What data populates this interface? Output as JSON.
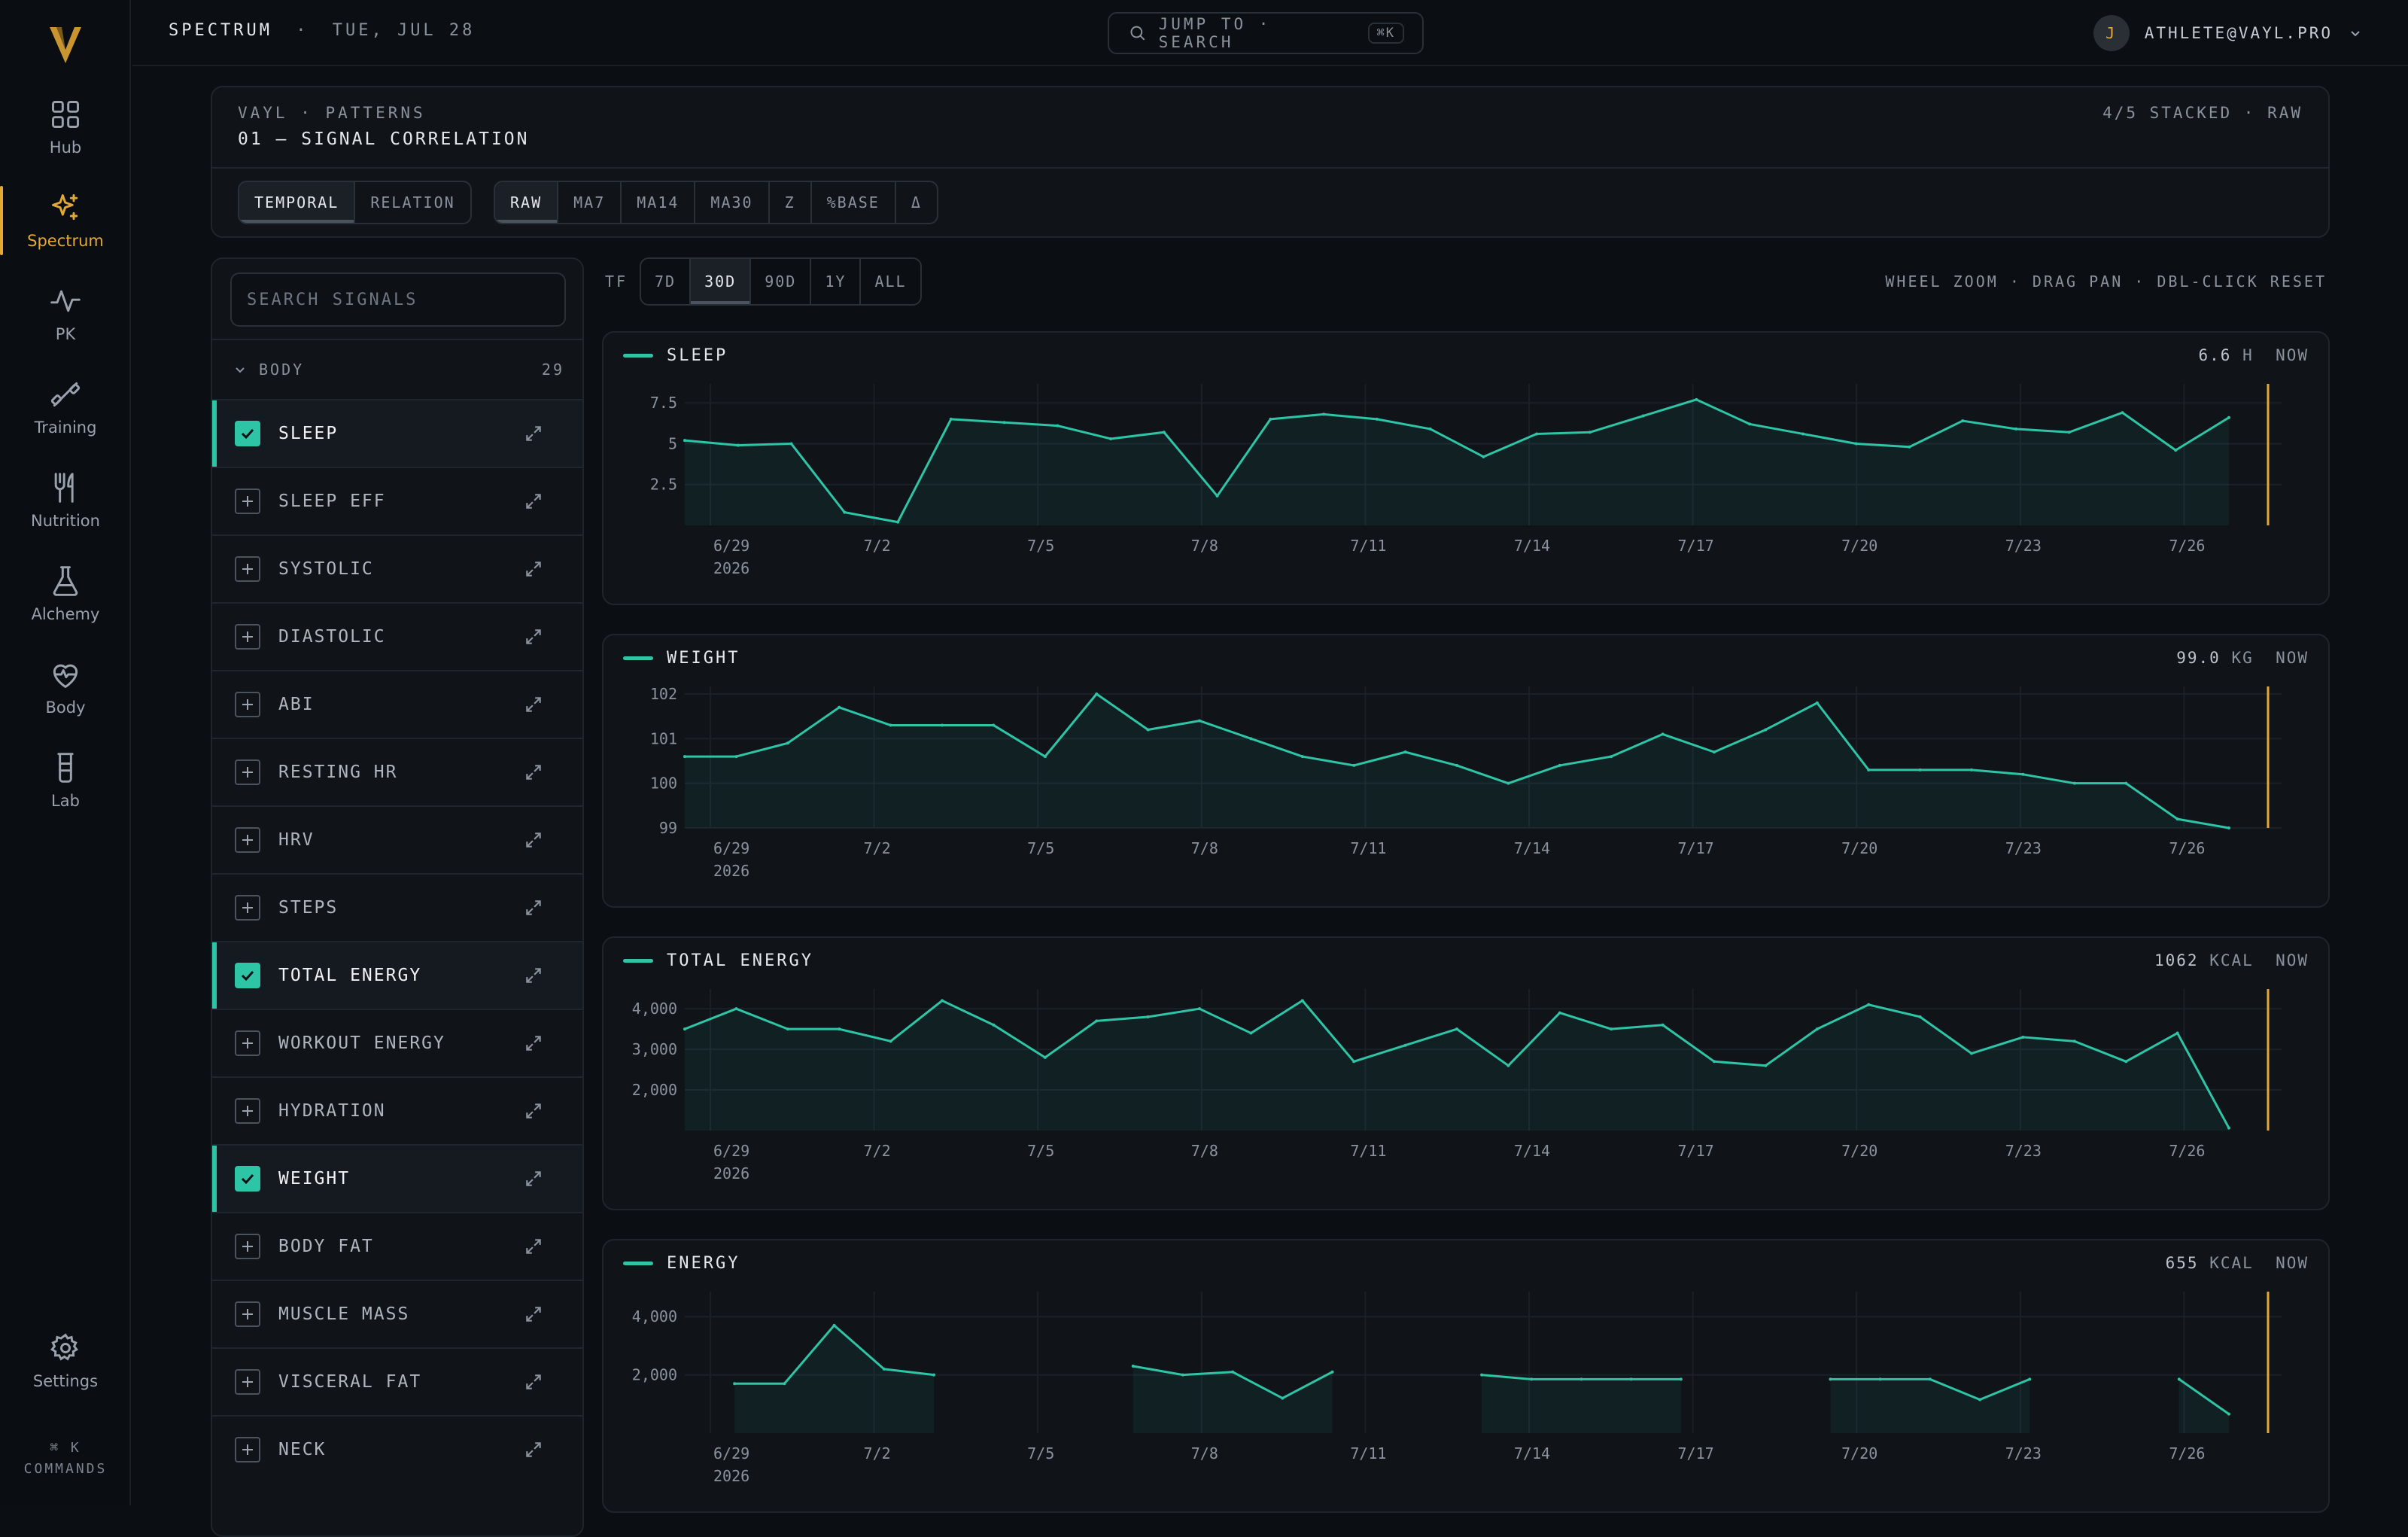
{
  "rail": {
    "items": [
      {
        "label": "Hub",
        "icon": "grid-icon"
      },
      {
        "label": "Spectrum",
        "icon": "sparkle-icon"
      },
      {
        "label": "PK",
        "icon": "pulse-icon"
      },
      {
        "label": "Training",
        "icon": "dumbbell-icon"
      },
      {
        "label": "Nutrition",
        "icon": "utensils-icon"
      },
      {
        "label": "Alchemy",
        "icon": "flask-icon"
      },
      {
        "label": "Body",
        "icon": "heart-pulse-icon"
      },
      {
        "label": "Lab",
        "icon": "beaker-icon"
      }
    ],
    "active": "Spectrum",
    "settings_label": "Settings",
    "cmd_key": "⌘ K",
    "cmd_label": "COMMANDS",
    "accent": "#e3a935"
  },
  "topbar": {
    "section": "SPECTRUM",
    "sep": "·",
    "date": "TUE, JUL 28",
    "search_text": "JUMP TO · SEARCH",
    "search_kbd": "⌘K",
    "avatar_initial": "J",
    "user_email": "ATHLETE@VAYL.PRO"
  },
  "patterns": {
    "subtitle": "VAYL · PATTERNS",
    "title": "01 — SIGNAL CORRELATION",
    "status": "4/5 STACKED · RAW",
    "modes": [
      "TEMPORAL",
      "RELATION"
    ],
    "active_mode": "TEMPORAL",
    "transforms": [
      "RAW",
      "MA7",
      "MA14",
      "MA30",
      "Z",
      "%BASE",
      "Δ"
    ],
    "active_transform": "RAW"
  },
  "signals": {
    "search_placeholder": "SEARCH SIGNALS",
    "group": "BODY",
    "group_count": "29",
    "items": [
      {
        "label": "SLEEP",
        "on": true
      },
      {
        "label": "SLEEP EFF",
        "on": false
      },
      {
        "label": "SYSTOLIC",
        "on": false
      },
      {
        "label": "DIASTOLIC",
        "on": false
      },
      {
        "label": "ABI",
        "on": false
      },
      {
        "label": "RESTING HR",
        "on": false
      },
      {
        "label": "HRV",
        "on": false
      },
      {
        "label": "STEPS",
        "on": false
      },
      {
        "label": "TOTAL ENERGY",
        "on": true
      },
      {
        "label": "WORKOUT ENERGY",
        "on": false
      },
      {
        "label": "HYDRATION",
        "on": false
      },
      {
        "label": "WEIGHT",
        "on": true
      },
      {
        "label": "BODY FAT",
        "on": false
      },
      {
        "label": "MUSCLE MASS",
        "on": false
      },
      {
        "label": "VISCERAL FAT",
        "on": false
      },
      {
        "label": "NECK",
        "on": false
      }
    ]
  },
  "timeframe": {
    "label": "TF",
    "options": [
      "7D",
      "30D",
      "90D",
      "1Y",
      "ALL"
    ],
    "active": "30D",
    "hint": "WHEEL ZOOM · DRAG PAN · DBL-CLICK RESET"
  },
  "colors": {
    "series": "#2ec4a6",
    "now_marker": "#e3a935"
  },
  "chart_data": [
    {
      "type": "area",
      "title": "SLEEP",
      "now_value": "6.6",
      "now_unit": "H",
      "now_label": "NOW",
      "x_ticks": [
        "6/29",
        "7/2",
        "7/5",
        "7/8",
        "7/11",
        "7/14",
        "7/17",
        "7/20",
        "7/23",
        "7/26"
      ],
      "x_year": "2026",
      "y_ticks": [
        7.5,
        5,
        2.5
      ],
      "ylim": [
        0,
        8.2
      ],
      "series": [
        {
          "values": [
            5.2,
            4.9,
            5.0,
            0.8,
            0.2,
            6.5,
            6.3,
            6.1,
            5.3,
            5.7,
            1.8,
            6.5,
            6.8,
            6.5,
            5.9,
            4.2,
            5.6,
            5.7,
            6.7,
            7.7,
            6.2,
            5.6,
            5.0,
            4.8,
            6.4,
            5.9,
            5.7,
            6.9,
            4.6,
            6.6
          ]
        }
      ]
    },
    {
      "type": "area",
      "title": "WEIGHT",
      "now_value": "99.0",
      "now_unit": "KG",
      "now_label": "NOW",
      "x_ticks": [
        "6/29",
        "7/2",
        "7/5",
        "7/8",
        "7/11",
        "7/14",
        "7/17",
        "7/20",
        "7/23",
        "7/26"
      ],
      "x_year": "2026",
      "y_ticks": [
        102,
        101,
        100,
        99
      ],
      "ylim": [
        99,
        102
      ],
      "series": [
        {
          "values": [
            100.6,
            100.6,
            100.9,
            101.7,
            101.3,
            101.3,
            101.3,
            100.6,
            102.0,
            101.2,
            101.4,
            101.0,
            100.6,
            100.4,
            100.7,
            100.4,
            100.0,
            100.4,
            100.6,
            101.1,
            100.7,
            101.2,
            101.8,
            100.3,
            100.3,
            100.3,
            100.2,
            100.0,
            100.0,
            99.2,
            99.0
          ]
        }
      ]
    },
    {
      "type": "area",
      "title": "TOTAL ENERGY",
      "now_value": "1062",
      "now_unit": "KCAL",
      "now_label": "NOW",
      "x_ticks": [
        "6/29",
        "7/2",
        "7/5",
        "7/8",
        "7/11",
        "7/14",
        "7/17",
        "7/20",
        "7/23",
        "7/26"
      ],
      "x_year": "2026",
      "y_ticks": [
        4000,
        3000,
        2000
      ],
      "ylim": [
        1000,
        4300
      ],
      "series": [
        {
          "values": [
            3500,
            4000,
            3500,
            3500,
            3200,
            4200,
            3600,
            2800,
            3700,
            3800,
            4000,
            3400,
            4200,
            2700,
            3100,
            3500,
            2600,
            3900,
            3500,
            3600,
            2700,
            2600,
            3500,
            4100,
            3800,
            2900,
            3300,
            3200,
            2700,
            3400,
            1062
          ]
        }
      ]
    },
    {
      "type": "area",
      "title": "ENERGY",
      "now_value": "655",
      "now_unit": "KCAL",
      "now_label": "NOW",
      "x_ticks": [
        "6/29",
        "7/2",
        "7/5",
        "7/8",
        "7/11",
        "7/14",
        "7/17",
        "7/20",
        "7/23",
        "7/26"
      ],
      "x_year": "2026",
      "y_ticks": [
        4000,
        2000
      ],
      "ylim": [
        0,
        4600
      ],
      "series": [
        {
          "values": [
            null,
            1700,
            1700,
            3700,
            2200,
            2000,
            null,
            null,
            null,
            2300,
            2000,
            2100,
            1200,
            2100,
            null,
            null,
            2000,
            1850,
            1850,
            1850,
            1850,
            null,
            null,
            1850,
            1850,
            1850,
            1150,
            1850,
            null,
            null,
            1850,
            655
          ]
        }
      ]
    }
  ]
}
